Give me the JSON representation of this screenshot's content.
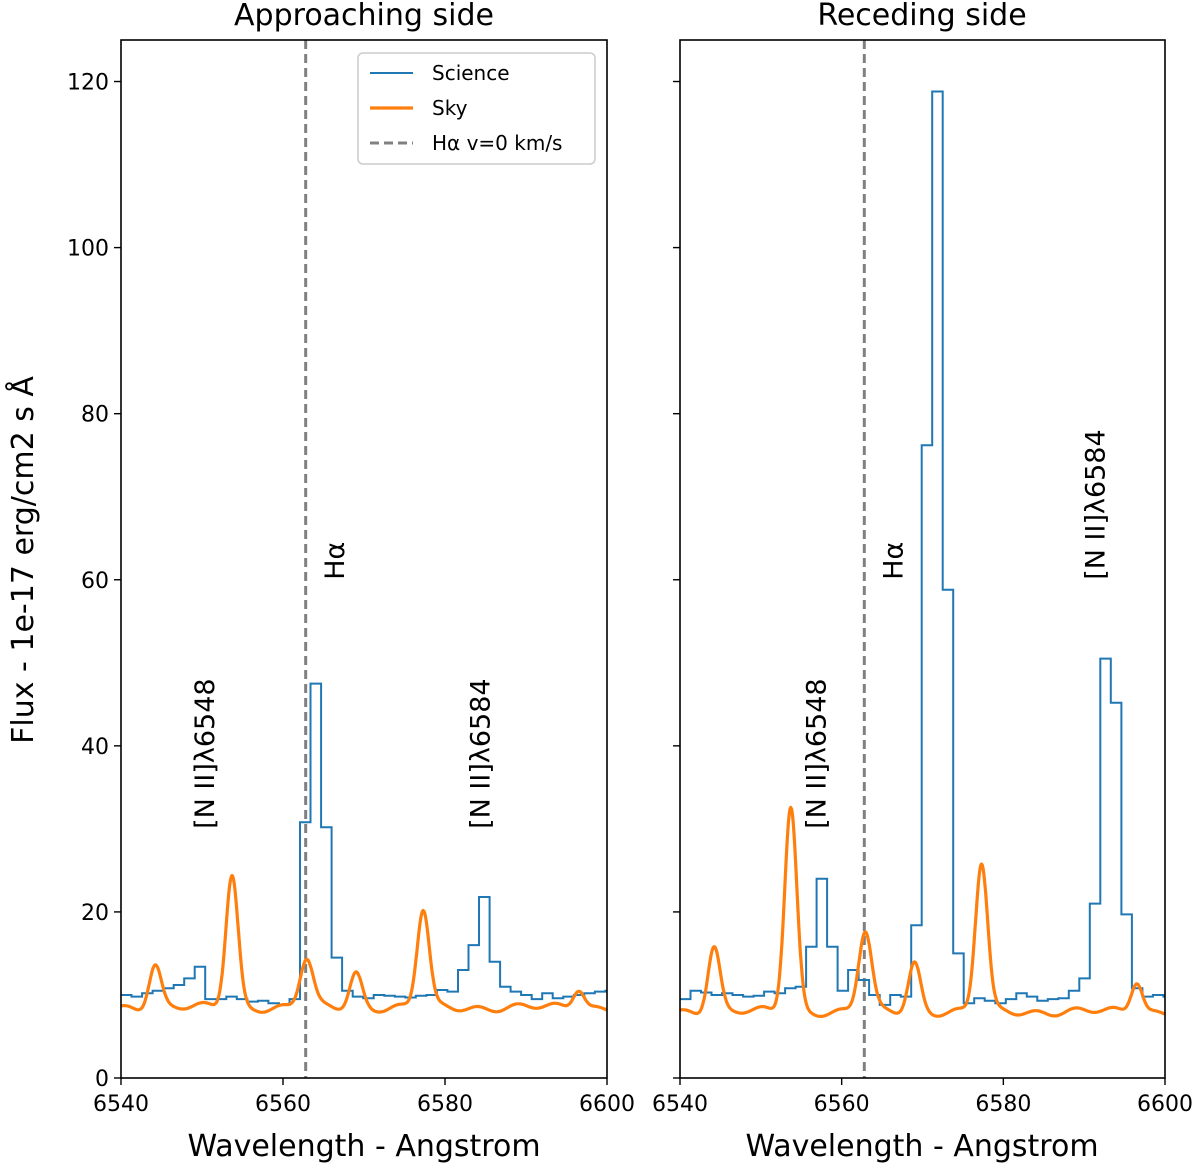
{
  "chart_data": [
    {
      "type": "line",
      "title": "Approaching side",
      "xlabel": "Wavelength - Angstrom",
      "ylabel": "Flux - 1e-17 erg/cm2 s Å",
      "xlim": [
        6540,
        6600
      ],
      "ylim": [
        0,
        125
      ],
      "xticks": [
        6540,
        6560,
        6580,
        6600
      ],
      "yticks": [
        0,
        20,
        40,
        60,
        80,
        100,
        120
      ],
      "legend_position": "top-right",
      "reference_line": {
        "label": "Hα v=0 km/s",
        "x": 6562.8,
        "color": "#808080",
        "style": "dashed"
      },
      "annotations": [
        {
          "text": "[N II]λ6548",
          "x": 6551.5,
          "y": 30
        },
        {
          "text": "Hα",
          "x": 6567.5,
          "y": 60
        },
        {
          "text": "[N II]λ6584",
          "x": 6585.5,
          "y": 30
        }
      ],
      "series": [
        {
          "name": "Science",
          "color": "#1f77b4",
          "style": "steps-post",
          "x": [
            6540,
            6541.3,
            6542.6,
            6543.9,
            6545.2,
            6546.5,
            6547.8,
            6549.1,
            6550.4,
            6551.7,
            6553.0,
            6554.3,
            6555.6,
            6556.9,
            6558.2,
            6559.5,
            6560.8,
            6562.1,
            6563.4,
            6564.7,
            6566.0,
            6567.3,
            6568.6,
            6569.9,
            6571.2,
            6572.5,
            6573.8,
            6575.1,
            6576.4,
            6577.7,
            6579.0,
            6580.3,
            6581.6,
            6582.9,
            6584.2,
            6585.5,
            6586.8,
            6588.1,
            6589.4,
            6590.7,
            6592.0,
            6593.3,
            6594.6,
            6595.9,
            6597.2,
            6598.5,
            6599.8
          ],
          "y": [
            10.0,
            9.8,
            10.2,
            10.5,
            10.8,
            11.2,
            12.0,
            13.4,
            9.5,
            9.5,
            9.8,
            9.5,
            9.2,
            9.3,
            9.0,
            8.8,
            9.5,
            30.8,
            47.5,
            30.2,
            14.5,
            10.5,
            9.8,
            9.6,
            10.0,
            9.9,
            9.8,
            9.7,
            9.9,
            10.0,
            10.6,
            10.4,
            13.0,
            16.0,
            21.8,
            14.0,
            11.0,
            10.4,
            10.0,
            9.5,
            10.2,
            9.6,
            9.8,
            10.0,
            10.2,
            10.4,
            10.5
          ]
        },
        {
          "name": "Sky",
          "color": "#ff7f0e",
          "style": "line",
          "baseline": 8.5,
          "peaks": [
            {
              "center": 6544.2,
              "amplitude": 13.8,
              "sigma": 0.75
            },
            {
              "center": 6553.7,
              "amplitude": 24.5,
              "sigma": 0.75
            },
            {
              "center": 6562.9,
              "amplitude": 14.3,
              "sigma": 0.8
            },
            {
              "center": 6569.0,
              "amplitude": 12.7,
              "sigma": 0.75
            },
            {
              "center": 6577.3,
              "amplitude": 20.2,
              "sigma": 0.75
            },
            {
              "center": 6596.5,
              "amplitude": 10.9,
              "sigma": 0.7
            }
          ]
        }
      ]
    },
    {
      "type": "line",
      "title": "Receding side",
      "xlabel": "Wavelength - Angstrom",
      "xlim": [
        6540,
        6600
      ],
      "ylim": [
        0,
        125
      ],
      "xticks": [
        6540,
        6560,
        6580,
        6600
      ],
      "reference_line": {
        "x": 6562.8,
        "color": "#808080",
        "style": "dashed"
      },
      "annotations": [
        {
          "text": "[N II]λ6548",
          "x": 6558.0,
          "y": 30
        },
        {
          "text": "Hα",
          "x": 6567.5,
          "y": 60
        },
        {
          "text": "[N II]λ6584",
          "x": 6592.5,
          "y": 60
        }
      ],
      "series": [
        {
          "name": "Science",
          "color": "#1f77b4",
          "style": "steps-post",
          "x": [
            6540,
            6541.3,
            6542.6,
            6543.9,
            6545.2,
            6546.5,
            6547.8,
            6549.1,
            6550.4,
            6551.7,
            6553.0,
            6554.3,
            6555.6,
            6556.9,
            6558.2,
            6559.5,
            6560.8,
            6562.1,
            6563.4,
            6564.7,
            6566.0,
            6567.3,
            6568.6,
            6569.9,
            6571.2,
            6572.5,
            6573.8,
            6575.1,
            6576.4,
            6577.7,
            6579.0,
            6580.3,
            6581.6,
            6582.9,
            6584.2,
            6585.5,
            6586.8,
            6588.1,
            6589.4,
            6590.7,
            6592.0,
            6593.3,
            6594.6,
            6595.9,
            6597.2,
            6598.5,
            6599.8
          ],
          "y": [
            9.5,
            10.5,
            10.3,
            10.0,
            10.2,
            10.0,
            9.8,
            9.9,
            10.4,
            10.2,
            10.8,
            11.0,
            15.8,
            24.0,
            15.8,
            10.5,
            13.0,
            11.8,
            10.0,
            8.8,
            10.0,
            9.8,
            18.4,
            76.2,
            118.8,
            58.8,
            15.0,
            9.0,
            9.6,
            9.3,
            9.0,
            9.5,
            10.2,
            9.8,
            9.3,
            9.5,
            9.6,
            10.5,
            12.0,
            21.0,
            50.5,
            45.2,
            19.7,
            10.8,
            9.8,
            10.0,
            9.8
          ]
        },
        {
          "name": "Sky",
          "color": "#ff7f0e",
          "style": "line",
          "baseline": 8.0,
          "peaks": [
            {
              "center": 6544.2,
              "amplitude": 16.0,
              "sigma": 0.75
            },
            {
              "center": 6553.7,
              "amplitude": 32.7,
              "sigma": 0.75
            },
            {
              "center": 6562.9,
              "amplitude": 17.6,
              "sigma": 0.8
            },
            {
              "center": 6569.0,
              "amplitude": 13.9,
              "sigma": 0.75
            },
            {
              "center": 6577.3,
              "amplitude": 25.8,
              "sigma": 0.75
            },
            {
              "center": 6596.5,
              "amplitude": 11.8,
              "sigma": 0.7
            }
          ]
        }
      ]
    }
  ]
}
